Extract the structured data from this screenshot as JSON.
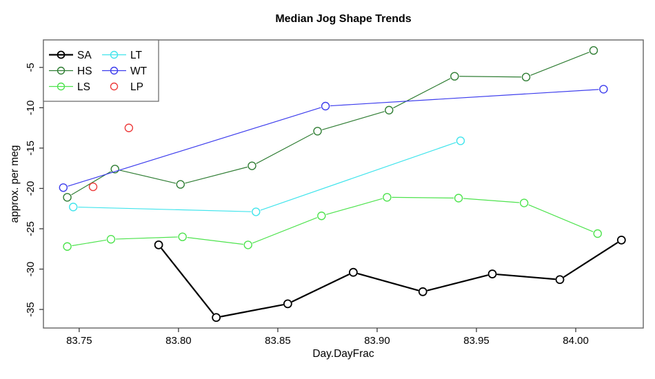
{
  "chart_data": {
    "type": "line",
    "title": "Median Jog Shape Trends",
    "xlabel": "Day.DayFrac",
    "ylabel": "approx. per meg",
    "xlim": [
      83.732,
      84.034
    ],
    "ylim": [
      -37.3,
      -1.6
    ],
    "grid": false,
    "marker": "open-circle",
    "legend_position": "topleft",
    "legend_columns": [
      [
        "SA",
        "HS",
        "LS"
      ],
      [
        "LT",
        "WT",
        "LP"
      ]
    ],
    "x_ticks": [
      {
        "v": 83.75,
        "label": "83.75"
      },
      {
        "v": 83.8,
        "label": "83.80"
      },
      {
        "v": 83.85,
        "label": "83.85"
      },
      {
        "v": 83.9,
        "label": "83.90"
      },
      {
        "v": 83.95,
        "label": "83.95"
      },
      {
        "v": 84.0,
        "label": "84.00"
      }
    ],
    "y_ticks": [
      {
        "v": -5,
        "label": "-5"
      },
      {
        "v": -10,
        "label": "-10"
      },
      {
        "v": -15,
        "label": "-15"
      },
      {
        "v": -20,
        "label": "-20"
      },
      {
        "v": -25,
        "label": "-25"
      },
      {
        "v": -30,
        "label": "-30"
      },
      {
        "v": -35,
        "label": "-35"
      }
    ],
    "series": [
      {
        "name": "SA",
        "color": "#000000",
        "line": true,
        "line_width": 2.2,
        "points": [
          [
            83.79,
            -27.0
          ],
          [
            83.819,
            -36.0
          ],
          [
            83.855,
            -34.3
          ],
          [
            83.888,
            -30.4
          ],
          [
            83.923,
            -32.8
          ],
          [
            83.958,
            -30.6
          ],
          [
            83.992,
            -31.3
          ],
          [
            84.023,
            -26.4
          ]
        ]
      },
      {
        "name": "HS",
        "color": "#2f7d33",
        "line": true,
        "line_width": 1.2,
        "points": [
          [
            83.744,
            -21.1
          ],
          [
            83.768,
            -17.6
          ],
          [
            83.801,
            -19.5
          ],
          [
            83.837,
            -17.2
          ],
          [
            83.87,
            -12.9
          ],
          [
            83.906,
            -10.3
          ],
          [
            83.939,
            -6.1
          ],
          [
            83.975,
            -6.2
          ],
          [
            84.009,
            -2.9
          ]
        ]
      },
      {
        "name": "LS",
        "color": "#4de34d",
        "line": true,
        "line_width": 1.2,
        "points": [
          [
            83.744,
            -27.2
          ],
          [
            83.766,
            -26.3
          ],
          [
            83.802,
            -26.0
          ],
          [
            83.835,
            -27.0
          ],
          [
            83.872,
            -23.4
          ],
          [
            83.905,
            -21.1
          ],
          [
            83.941,
            -21.2
          ],
          [
            83.974,
            -21.8
          ],
          [
            84.011,
            -25.6
          ]
        ]
      },
      {
        "name": "LT",
        "color": "#40e4ec",
        "line": true,
        "line_width": 1.2,
        "points": [
          [
            83.747,
            -22.3
          ],
          [
            83.839,
            -22.9
          ],
          [
            83.942,
            -14.1
          ]
        ]
      },
      {
        "name": "WT",
        "color": "#3c3ced",
        "line": true,
        "line_width": 1.2,
        "points": [
          [
            83.742,
            -19.9
          ],
          [
            83.874,
            -9.8
          ],
          [
            84.014,
            -7.7
          ]
        ]
      },
      {
        "name": "LP",
        "color": "#ed3c3c",
        "line": false,
        "line_width": 1.2,
        "points": [
          [
            83.757,
            -19.8
          ],
          [
            83.775,
            -12.5
          ]
        ]
      }
    ]
  }
}
